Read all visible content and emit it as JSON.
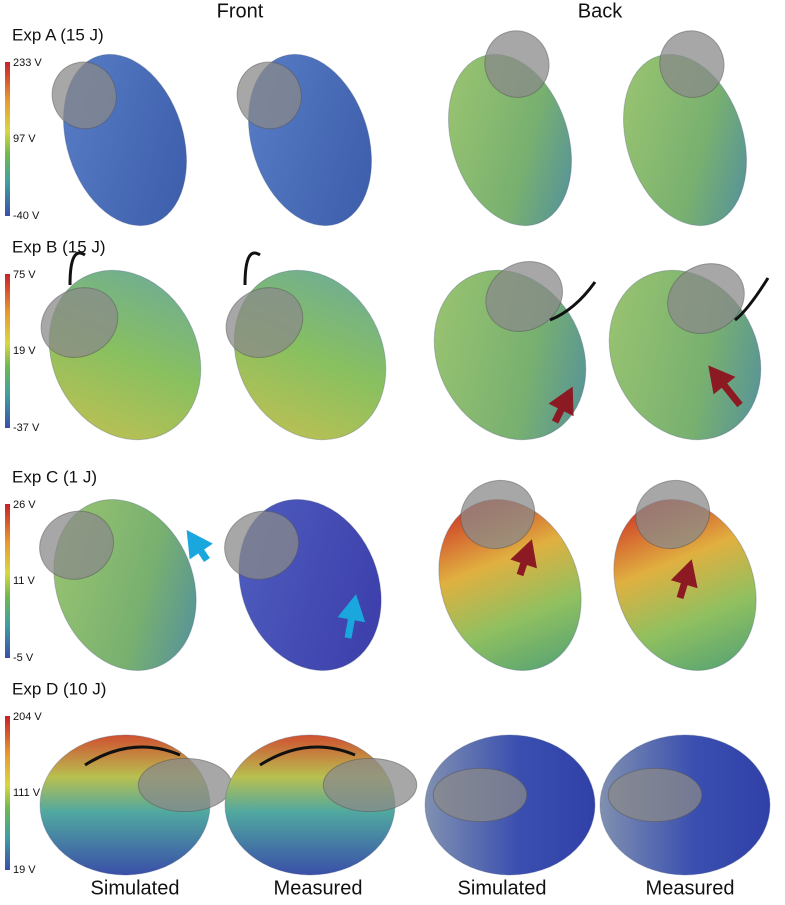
{
  "column_headers": [
    "Front",
    "Back"
  ],
  "rows": [
    {
      "label": "Exp A (15 J)",
      "colorbar": {
        "max": "233 V",
        "mid": "97 V",
        "min": "-40 V"
      }
    },
    {
      "label": "Exp B (15 J)",
      "colorbar": {
        "max": "75 V",
        "mid": "19 V",
        "min": "-37 V"
      }
    },
    {
      "label": "Exp C (1 J)",
      "colorbar": {
        "max": "26 V",
        "mid": "11 V",
        "min": "-5 V"
      }
    },
    {
      "label": "Exp D (10 J)",
      "colorbar": {
        "max": "204 V",
        "mid": "111 V",
        "min": "19 V"
      }
    }
  ],
  "column_labels": [
    "Simulated",
    "Measured",
    "Simulated",
    "Measured"
  ]
}
